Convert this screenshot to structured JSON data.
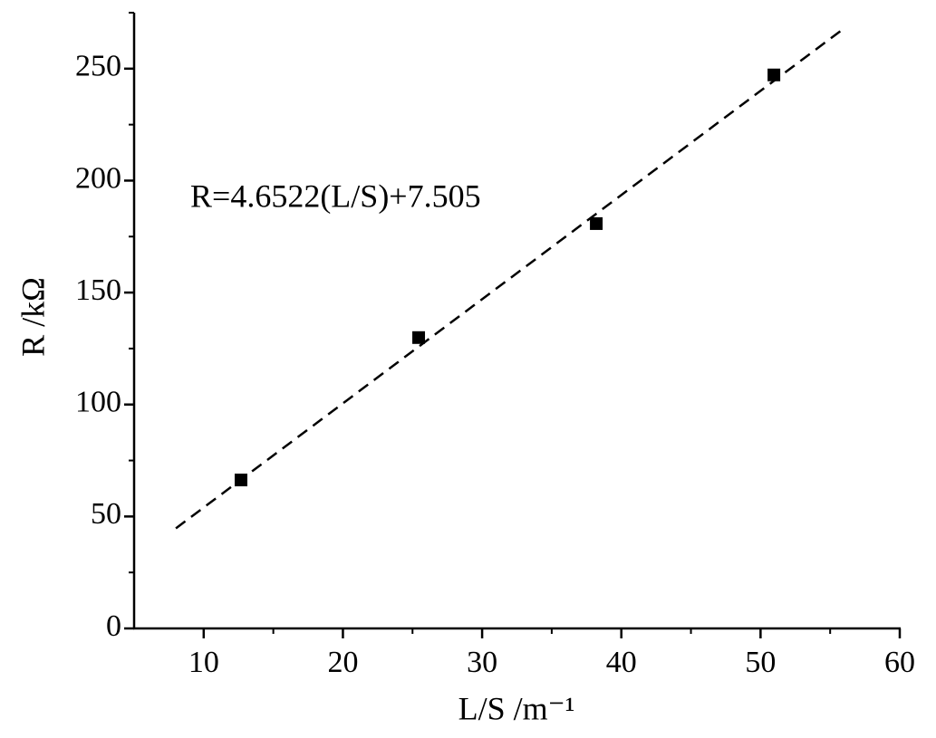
{
  "chart_data": {
    "type": "scatter",
    "x_label": "L/S  /m⁻¹",
    "y_label": "R /kΩ",
    "annotation": "R=4.6522(L/S)+7.505",
    "x": [
      12.68,
      25.44,
      38.2,
      50.96
    ],
    "y": [
      66.3,
      129.9,
      180.8,
      247.2
    ],
    "color": "#000000",
    "marker": "square",
    "fit_x": [
      8,
      56
    ],
    "fit_y": [
      44.7,
      268.0
    ],
    "fit_style": "dashed",
    "xlim": [
      5,
      60
    ],
    "xticks": [
      10,
      20,
      30,
      40,
      50,
      60
    ],
    "xminor_ticks": [
      15,
      25,
      35,
      45,
      55
    ],
    "ylim": [
      0,
      275
    ],
    "yticks": [
      0,
      50,
      100,
      150,
      200,
      250
    ],
    "yminor_ticks": [
      25,
      75,
      125,
      175,
      225,
      275
    ],
    "grid": false
  }
}
